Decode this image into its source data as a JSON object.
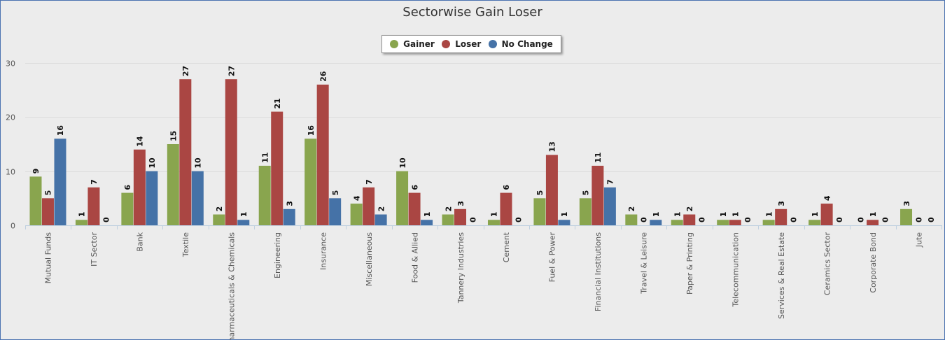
{
  "chart_data": {
    "type": "bar",
    "title": "Sectorwise Gain Loser",
    "xlabel": "",
    "ylabel": "",
    "ylim": [
      0,
      30
    ],
    "yticks": [
      0,
      10,
      20,
      30
    ],
    "grid": true,
    "legend_position": "top-center",
    "categories": [
      "Mutual Funds",
      "IT Sector",
      "Bank",
      "Textile",
      "Pharmaceuticals & Chemicals",
      "Engineering",
      "Insurance",
      "Miscellaneous",
      "Food & Allied",
      "Tannery Industries",
      "Cement",
      "Fuel & Power",
      "Financial Institutions",
      "Travel & Leisure",
      "Paper & Printing",
      "Telecommunication",
      "Services & Real Estate",
      "Ceramics Sector",
      "Corporate Bond",
      "Jute"
    ],
    "series": [
      {
        "name": "Gainer",
        "color": "#89a54e",
        "values": [
          9,
          1,
          6,
          15,
          2,
          11,
          16,
          4,
          10,
          2,
          1,
          5,
          5,
          2,
          1,
          1,
          1,
          1,
          0,
          3
        ]
      },
      {
        "name": "Loser",
        "color": "#aa4643",
        "values": [
          5,
          7,
          14,
          27,
          27,
          21,
          26,
          7,
          6,
          3,
          6,
          13,
          11,
          0,
          2,
          1,
          3,
          4,
          1,
          0
        ]
      },
      {
        "name": "No Change",
        "color": "#4572a7",
        "values": [
          16,
          0,
          10,
          10,
          1,
          3,
          5,
          2,
          1,
          0,
          0,
          1,
          7,
          1,
          0,
          0,
          0,
          0,
          0,
          0
        ]
      }
    ]
  }
}
